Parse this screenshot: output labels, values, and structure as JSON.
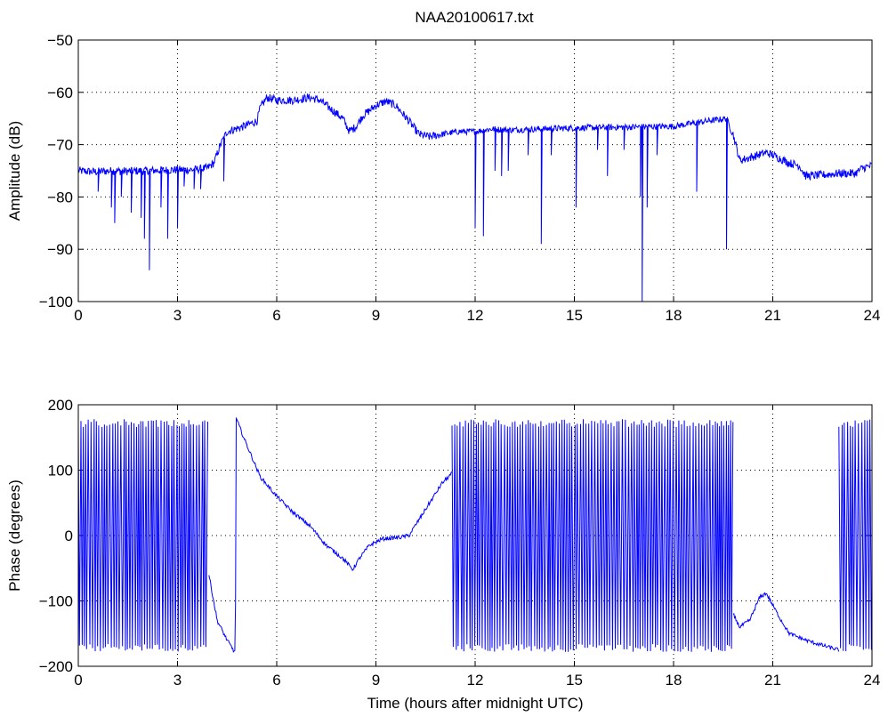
{
  "figure": {
    "title": "NAA20100617.txt",
    "background": "#ffffff",
    "line_color": "#0000ff"
  },
  "chart_data": [
    {
      "type": "line",
      "title": "NAA20100617.txt",
      "xlabel": "",
      "ylabel": "Amplitude (dB)",
      "xlim": [
        0,
        24
      ],
      "ylim": [
        -100,
        -50
      ],
      "xticks": [
        0,
        3,
        6,
        9,
        12,
        15,
        18,
        21,
        24
      ],
      "yticks": [
        -100,
        -90,
        -80,
        -70,
        -60,
        -50
      ],
      "grid": true,
      "color": "#0000ff",
      "baseline": [
        [
          0,
          -75
        ],
        [
          0.5,
          -75.2
        ],
        [
          1,
          -75
        ],
        [
          1.5,
          -75.1
        ],
        [
          2,
          -75
        ],
        [
          2.5,
          -74.9
        ],
        [
          3,
          -74.8
        ],
        [
          3.5,
          -74.8
        ],
        [
          3.9,
          -74.5
        ],
        [
          4.1,
          -73.5
        ],
        [
          4.3,
          -70
        ],
        [
          4.5,
          -67.5
        ],
        [
          5,
          -66.5
        ],
        [
          5.4,
          -65.5
        ],
        [
          5.5,
          -63
        ],
        [
          5.7,
          -61
        ],
        [
          6,
          -61.5
        ],
        [
          6.5,
          -61.5
        ],
        [
          7,
          -61
        ],
        [
          7.3,
          -61.5
        ],
        [
          7.6,
          -63
        ],
        [
          8,
          -65
        ],
        [
          8.2,
          -67.5
        ],
        [
          8.4,
          -66.5
        ],
        [
          8.6,
          -64.5
        ],
        [
          9,
          -62.5
        ],
        [
          9.3,
          -61.7
        ],
        [
          9.6,
          -62.5
        ],
        [
          10,
          -65.5
        ],
        [
          10.3,
          -68
        ],
        [
          10.6,
          -68.5
        ],
        [
          11,
          -68
        ],
        [
          11.5,
          -67.5
        ],
        [
          12,
          -67.5
        ],
        [
          12.5,
          -67
        ],
        [
          13,
          -67.2
        ],
        [
          14,
          -67
        ],
        [
          15,
          -66.8
        ],
        [
          16,
          -66.7
        ],
        [
          17,
          -66.6
        ],
        [
          18,
          -66.5
        ],
        [
          19,
          -65.5
        ],
        [
          19.6,
          -65
        ],
        [
          19.8,
          -68
        ],
        [
          20,
          -73
        ],
        [
          20.3,
          -72.5
        ],
        [
          20.8,
          -71.5
        ],
        [
          21,
          -72
        ],
        [
          21.5,
          -73.5
        ],
        [
          21.8,
          -74
        ],
        [
          22,
          -76
        ],
        [
          22.5,
          -75.8
        ],
        [
          23,
          -75.5
        ],
        [
          23.5,
          -75.5
        ],
        [
          23.7,
          -74.5
        ],
        [
          24,
          -74
        ]
      ],
      "spikes": [
        [
          0.6,
          -79
        ],
        [
          1.0,
          -82
        ],
        [
          1.1,
          -85
        ],
        [
          1.3,
          -80
        ],
        [
          1.6,
          -83
        ],
        [
          1.9,
          -84
        ],
        [
          2.0,
          -88
        ],
        [
          2.15,
          -94
        ],
        [
          2.5,
          -82
        ],
        [
          2.7,
          -88
        ],
        [
          3.0,
          -86
        ],
        [
          3.2,
          -78
        ],
        [
          3.5,
          -78.5
        ],
        [
          3.7,
          -78.5
        ],
        [
          4.4,
          -77
        ],
        [
          12.0,
          -86
        ],
        [
          12.25,
          -87.5
        ],
        [
          12.6,
          -75
        ],
        [
          12.8,
          -76
        ],
        [
          13.0,
          -75
        ],
        [
          13.6,
          -72
        ],
        [
          14.0,
          -89
        ],
        [
          14.3,
          -72
        ],
        [
          15.05,
          -82
        ],
        [
          15.7,
          -71
        ],
        [
          16.0,
          -76
        ],
        [
          16.5,
          -71
        ],
        [
          17.0,
          -80
        ],
        [
          17.05,
          -100
        ],
        [
          17.2,
          -82
        ],
        [
          17.5,
          -72
        ],
        [
          18.7,
          -79
        ],
        [
          19.6,
          -90
        ]
      ]
    },
    {
      "type": "line",
      "title": "",
      "xlabel": "Time (hours after midnight UTC)",
      "ylabel": "Phase (degrees)",
      "xlim": [
        0,
        24
      ],
      "ylim": [
        -200,
        200
      ],
      "xticks": [
        0,
        3,
        6,
        9,
        12,
        15,
        18,
        21,
        24
      ],
      "yticks": [
        -200,
        -100,
        0,
        100,
        200
      ],
      "grid": true,
      "color": "#0000ff",
      "wrapped_intervals": [
        [
          0,
          3.95
        ],
        [
          11.3,
          19.8
        ],
        [
          23.0,
          24
        ]
      ],
      "trend": [
        [
          3.95,
          -60
        ],
        [
          4.2,
          -130
        ],
        [
          4.5,
          -160
        ],
        [
          4.75,
          -180
        ],
        [
          4.77,
          180
        ],
        [
          5.0,
          150
        ],
        [
          5.5,
          90
        ],
        [
          6.0,
          60
        ],
        [
          6.5,
          35
        ],
        [
          7.0,
          15
        ],
        [
          7.5,
          -15
        ],
        [
          8.0,
          -35
        ],
        [
          8.3,
          -52
        ],
        [
          8.5,
          -35
        ],
        [
          8.8,
          -15
        ],
        [
          9.2,
          -5
        ],
        [
          9.7,
          -3
        ],
        [
          10.0,
          0
        ],
        [
          10.5,
          40
        ],
        [
          11.0,
          80
        ],
        [
          11.3,
          95
        ],
        [
          19.8,
          -120
        ],
        [
          20.0,
          -140
        ],
        [
          20.3,
          -130
        ],
        [
          20.6,
          -95
        ],
        [
          20.8,
          -88
        ],
        [
          21.2,
          -125
        ],
        [
          21.5,
          -150
        ],
        [
          22.0,
          -160
        ],
        [
          22.5,
          -168
        ],
        [
          23.0,
          -175
        ]
      ]
    }
  ]
}
